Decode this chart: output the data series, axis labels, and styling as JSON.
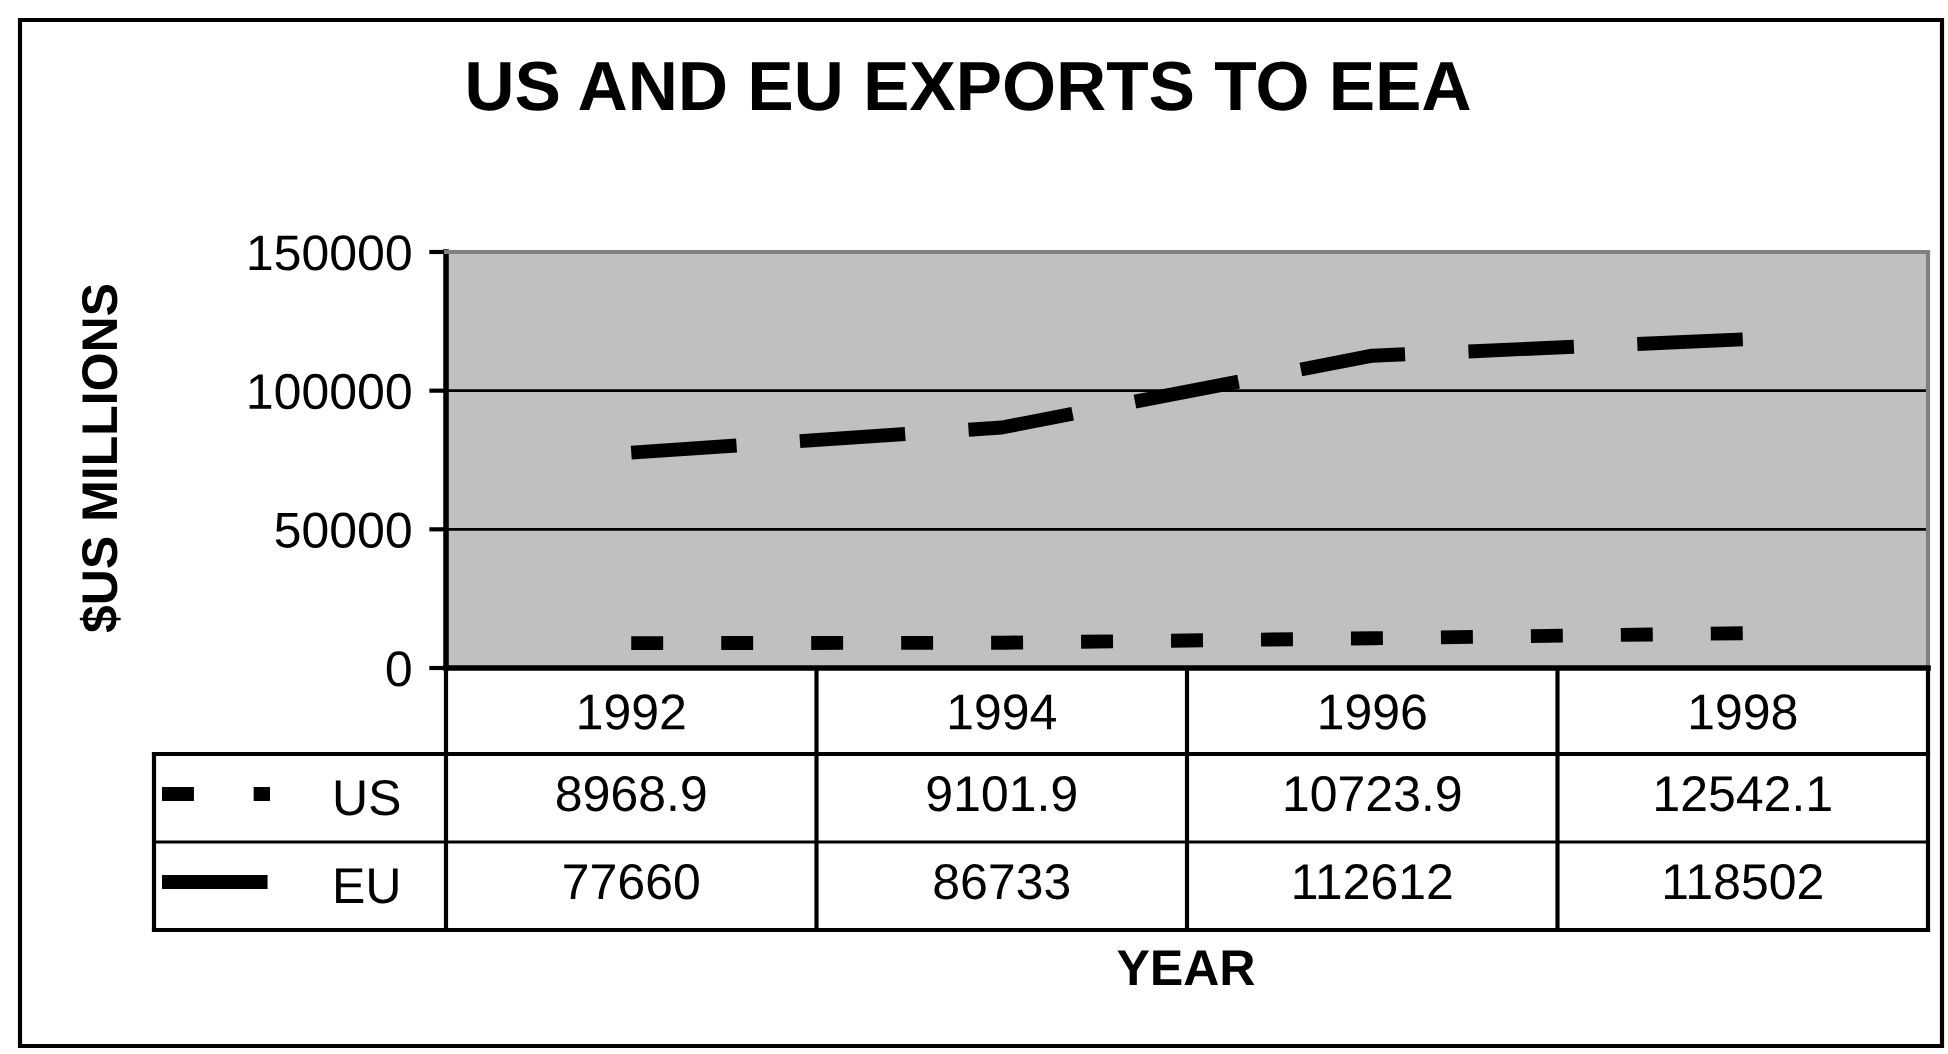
{
  "chart_data": {
    "type": "line",
    "title": "US AND EU EXPORTS TO EEA",
    "xlabel": "YEAR",
    "ylabel": "$US MILLIONS",
    "categories": [
      "1992",
      "1994",
      "1996",
      "1998"
    ],
    "series": [
      {
        "name": "US",
        "color": "#000000",
        "line_style": "dotted",
        "values": [
          8968.9,
          9101.9,
          10723.9,
          12542.1
        ]
      },
      {
        "name": "EU",
        "color": "#000000",
        "line_style": "dashed",
        "values": [
          77660,
          86733,
          112612,
          118502
        ]
      }
    ],
    "ylim": [
      0,
      150000
    ],
    "yticks": [
      0,
      50000,
      100000,
      150000
    ],
    "grid": "y",
    "legend": "bottom",
    "data_labels": true
  }
}
